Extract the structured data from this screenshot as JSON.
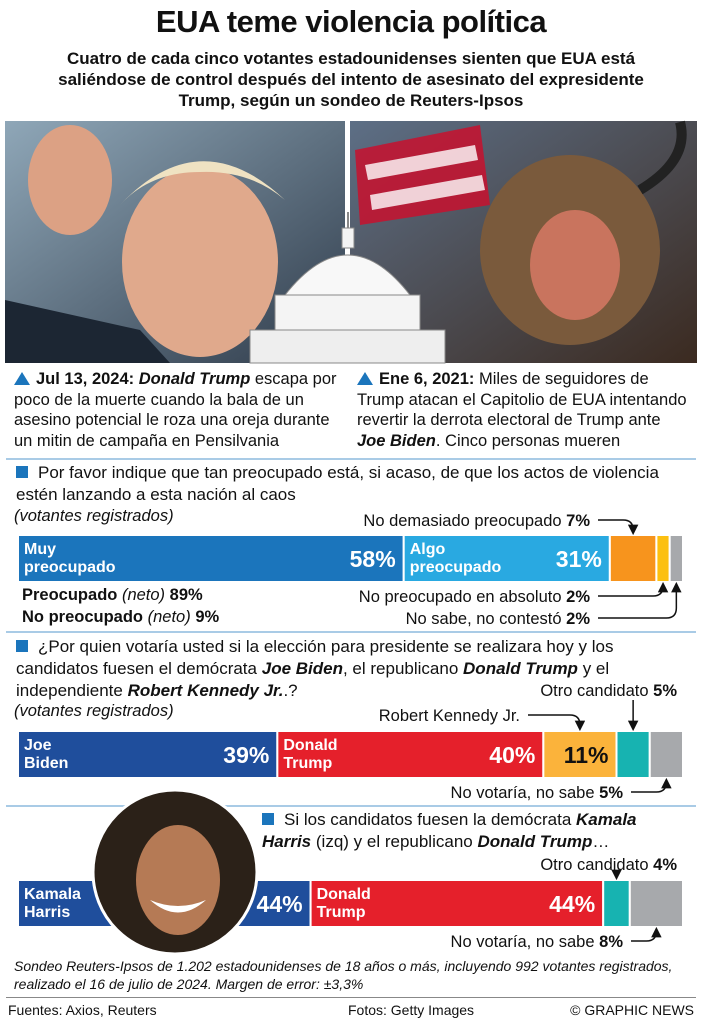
{
  "header": {
    "title": "EUA teme violencia política",
    "subtitle": "Cuatro de cada cinco votantes estadounidenses sienten que EUA está saliéndose de control después del intento de asesinato del expresidente Trump, según un sondeo de Reuters-Ipsos"
  },
  "captions": [
    [
      "Jul 13, 2024:",
      "Donald Trump",
      "escapa por poco de la muerte cuando la bala de un asesino potencial le roza una oreja durante un mitin de campaña en Pensilvania"
    ],
    [
      "Ene 6, 2021:",
      "Miles de seguidores de Trump atacan el Capitolio de EUA intentando revertir la derrota electoral de Trump ante",
      "Joe Biden",
      ". Cinco personas mueren"
    ]
  ],
  "chart_data": [
    {
      "type": "stacked_bar",
      "question": [
        "Por favor indique que tan preocupado está, si acaso, de que los actos de violencia estén lanzando a esta nación al caos"
      ],
      "note": "(votantes registrados)",
      "xlim": [
        0,
        100
      ],
      "series": [
        {
          "name": "Muy preocupado",
          "color": "#1b75bc",
          "values": [
            58
          ],
          "value_labels": [
            "58%"
          ]
        },
        {
          "name": "Algo preocupado",
          "color": "#29a9e1",
          "values": [
            31
          ],
          "value_labels": [
            "31%"
          ]
        },
        {
          "name": "No demasiado preocupado",
          "color": "#f7941d",
          "values": [
            7
          ],
          "value_labels": [
            "7%"
          ]
        },
        {
          "name": "No preocupado en absoluto",
          "color": "#fcc010",
          "values": [
            2
          ],
          "value_labels": [
            "2%"
          ]
        },
        {
          "name": "No sabe, no contestó",
          "color": "#a7a9ac",
          "values": [
            2
          ],
          "value_labels": [
            "2%"
          ]
        }
      ],
      "net": {
        "names": [
          "Preocupado",
          "No preocupado"
        ],
        "notes": [
          "(neto)",
          "(neto)"
        ],
        "values": [
          89,
          9
        ],
        "value_labels": [
          "89%",
          "9%"
        ]
      }
    },
    {
      "type": "stacked_bar",
      "question": [
        "¿Por quien votaría usted si la elección para presidente se realizara hoy y los candidatos fuesen el demócrata",
        "Joe Biden",
        ", el republicano",
        "Donald Trump",
        "y el independiente",
        "Robert Kennedy Jr.",
        ".?"
      ],
      "note": "(votantes registrados)",
      "xlim": [
        0,
        100
      ],
      "series": [
        {
          "name": "Joe Biden",
          "color": "#1f4e9c",
          "values": [
            39
          ],
          "value_labels": [
            "39%"
          ]
        },
        {
          "name": "Donald Trump",
          "color": "#e5202b",
          "values": [
            40
          ],
          "value_labels": [
            "40%"
          ]
        },
        {
          "name": "Robert Kennedy Jr.",
          "color": "#fbb33b",
          "values": [
            11
          ],
          "value_labels": [
            "11%"
          ]
        },
        {
          "name": "Otro candidato",
          "color": "#17b3b1",
          "values": [
            5
          ],
          "value_labels": [
            "5%"
          ]
        },
        {
          "name": "No votaría, no sabe",
          "color": "#a7a9ac",
          "values": [
            5
          ],
          "value_labels": [
            "5%"
          ]
        }
      ]
    },
    {
      "type": "stacked_bar",
      "question": [
        "Si los candidatos fuesen la demócrata",
        "Kamala Harris",
        "(izq) y el republicano",
        "Donald Trump",
        "…"
      ],
      "xlim": [
        0,
        100
      ],
      "series": [
        {
          "name": "Kamala Harris",
          "color": "#1f4e9c",
          "values": [
            44
          ],
          "value_labels": [
            "44%"
          ]
        },
        {
          "name": "Donald Trump",
          "color": "#e5202b",
          "values": [
            44
          ],
          "value_labels": [
            "44%"
          ]
        },
        {
          "name": "Otro candidato",
          "color": "#17b3b1",
          "values": [
            4
          ],
          "value_labels": [
            "4%"
          ]
        },
        {
          "name": "No votaría, no sabe",
          "color": "#a7a9ac",
          "values": [
            8
          ],
          "value_labels": [
            "8%"
          ]
        }
      ]
    }
  ],
  "footer": {
    "note": "Sondeo Reuters-Ipsos de 1.202 estadounidenses de 18 años o más, incluyendo 992 votantes registrados, realizado el 16 de julio de 2024. Margen de error: ±3,3%",
    "sources": "Fuentes: Axios, Reuters",
    "photos": "Fotos: Getty Images",
    "credit": "© GRAPHIC NEWS"
  }
}
